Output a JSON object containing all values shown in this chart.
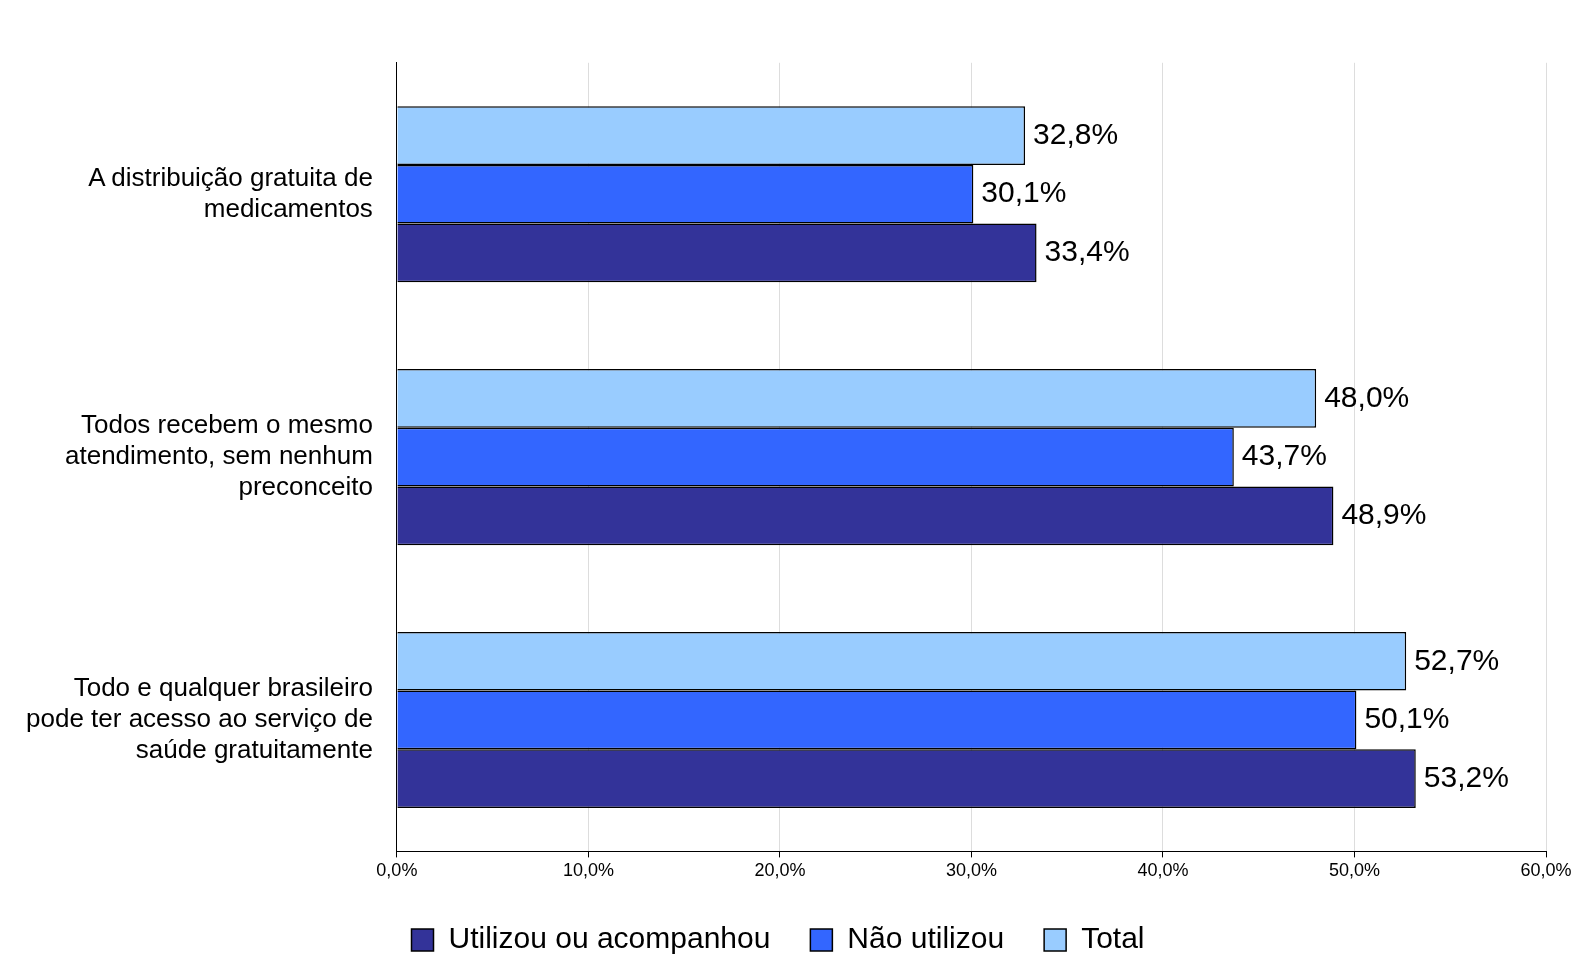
{
  "chart_data": {
    "type": "bar",
    "orientation": "horizontal",
    "categories": [
      "A distribuição gratuita de medicamentos",
      "Todos recebem o mesmo atendimento, sem nenhum preconceito",
      "Todo e qualquer brasileiro pode ter acesso ao serviço de saúde gratuitamente"
    ],
    "series": [
      {
        "name": "Utilizou ou acompanhou",
        "color": "#333399",
        "values": [
          33.4,
          48.9,
          53.2
        ],
        "value_labels": [
          "33,4%",
          "48,9%",
          "53,2%"
        ]
      },
      {
        "name": "Não utilizou",
        "color": "#3366ff",
        "values": [
          30.1,
          43.7,
          50.1
        ],
        "value_labels": [
          "30,1%",
          "43,7%",
          "50,1%"
        ]
      },
      {
        "name": "Total",
        "color": "#99ccff",
        "values": [
          32.8,
          48.0,
          52.7
        ],
        "value_labels": [
          "32,8%",
          "48,0%",
          "52,7%"
        ]
      }
    ],
    "xlim": [
      0,
      60
    ],
    "xticks": [
      {
        "value": 0,
        "label": "0,0%"
      },
      {
        "value": 10,
        "label": "10,0%"
      },
      {
        "value": 20,
        "label": "20,0%"
      },
      {
        "value": 30,
        "label": "30,0%"
      },
      {
        "value": 40,
        "label": "40,0%"
      },
      {
        "value": 50,
        "label": "50,0%"
      },
      {
        "value": 60,
        "label": "60,0%"
      }
    ],
    "grid": "x",
    "legend": "bottom"
  }
}
